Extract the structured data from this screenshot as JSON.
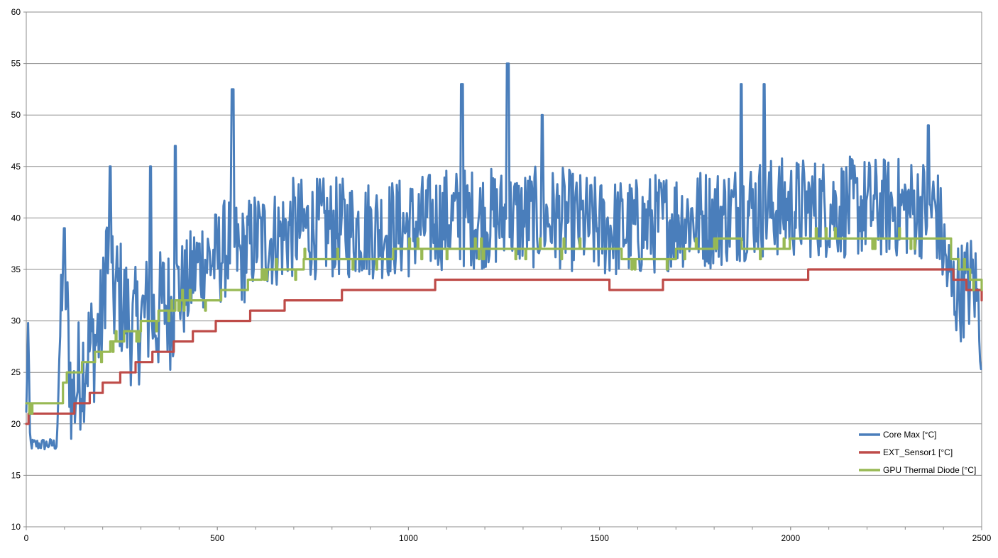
{
  "chart_data": {
    "type": "line",
    "title": "",
    "xlabel": "",
    "ylabel": "",
    "xlim": [
      0,
      2500
    ],
    "ylim": [
      10,
      60
    ],
    "x_ticks": [
      "0",
      "500",
      "1000",
      "1500",
      "2000",
      "2500"
    ],
    "y_ticks": [
      "10",
      "15",
      "20",
      "25",
      "30",
      "35",
      "40",
      "45",
      "50",
      "55",
      "60"
    ],
    "grid": "horizontal",
    "legend_position": "bottom-right",
    "series": [
      {
        "name": "Core Max [°C]",
        "color": "#4a7ebb",
        "style": "noisy",
        "x": [
          0,
          5,
          10,
          30,
          60,
          80,
          90,
          95,
          100,
          110,
          120,
          140,
          160,
          180,
          200,
          210,
          220,
          240,
          260,
          280,
          300,
          320,
          340,
          360,
          380,
          400,
          420,
          440,
          460,
          480,
          500,
          520,
          540,
          560,
          580,
          600,
          650,
          700,
          750,
          800,
          850,
          900,
          950,
          1000,
          1100,
          1200,
          1300,
          1400,
          1500,
          1550,
          1600,
          1700,
          1800,
          1900,
          2000,
          2100,
          2200,
          2300,
          2380,
          2400,
          2420,
          2450,
          2480,
          2500
        ],
        "y": [
          21,
          30,
          18,
          18,
          18,
          18,
          30,
          36,
          36,
          28,
          22,
          25,
          27,
          28,
          30,
          38,
          32,
          33,
          31,
          29,
          30,
          31,
          30,
          32,
          31,
          33,
          33,
          35,
          36,
          36,
          36,
          37,
          38,
          36,
          37,
          38,
          38,
          39,
          39,
          39,
          39,
          39,
          39,
          39,
          40,
          40,
          40,
          40,
          39,
          39,
          39,
          40,
          40,
          41,
          41,
          41,
          41,
          41,
          41,
          37,
          33,
          33,
          34,
          29
        ],
        "peaks": [
          {
            "x": 100,
            "y": 39
          },
          {
            "x": 220,
            "y": 45
          },
          {
            "x": 325,
            "y": 45
          },
          {
            "x": 390,
            "y": 47
          },
          {
            "x": 540,
            "y": 52.5
          },
          {
            "x": 1140,
            "y": 53
          },
          {
            "x": 1260,
            "y": 55
          },
          {
            "x": 1350,
            "y": 50
          },
          {
            "x": 1870,
            "y": 53
          },
          {
            "x": 1930,
            "y": 53
          },
          {
            "x": 2360,
            "y": 49
          }
        ]
      },
      {
        "name": "EXT_Sensor1 [°C]",
        "color": "#be4b48",
        "style": "step",
        "x": [
          0,
          5,
          125,
          165,
          200,
          245,
          285,
          330,
          385,
          435,
          495,
          585,
          625,
          675,
          825,
          1070,
          1525,
          1665,
          2045,
          2395,
          2425,
          2460,
          2500
        ],
        "y": [
          20,
          21,
          22,
          23,
          24,
          25,
          26,
          27,
          28,
          29,
          30,
          31,
          31,
          32,
          33,
          34,
          33,
          34,
          35,
          35,
          34,
          33,
          32
        ]
      },
      {
        "name": "GPU Thermal Diode [°C]",
        "color": "#98b954",
        "style": "step",
        "x": [
          0,
          5,
          85,
          95,
          105,
          145,
          180,
          220,
          255,
          300,
          345,
          390,
          440,
          510,
          580,
          615,
          725,
          875,
          960,
          1290,
          1500,
          1560,
          1700,
          1800,
          1870,
          2000,
          2395,
          2420,
          2440,
          2470,
          2500
        ],
        "y": [
          22,
          22,
          22,
          24,
          25,
          26,
          27,
          28,
          29,
          30,
          31,
          32,
          32,
          33,
          34,
          35,
          36,
          36,
          37,
          37,
          37,
          36,
          37,
          38,
          37,
          38,
          38,
          36,
          35,
          34,
          33
        ]
      }
    ]
  }
}
